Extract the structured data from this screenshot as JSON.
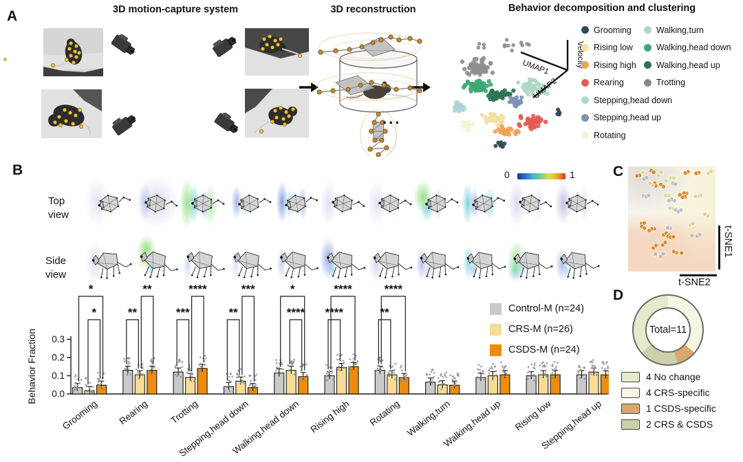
{
  "figure": {
    "panel_a": {
      "label": "A",
      "title_capture": "3D motion-capture system",
      "title_reconstruction": "3D reconstruction",
      "title_clustering": "Behavior decomposition and clustering",
      "ellipsis": "...",
      "umap_axes": {
        "vertical": "Velocity",
        "upper": "UMAP1",
        "lower": "UMAP2"
      },
      "behavior_legend_col1": [
        {
          "label": "Grooming",
          "color": "#2d4a57"
        },
        {
          "label": "Rising low",
          "color": "#f7e3a8"
        },
        {
          "label": "Rising high",
          "color": "#f0a355"
        },
        {
          "label": "Rearing",
          "color": "#e05c52"
        },
        {
          "label": "Stepping,head down",
          "color": "#aed5d6"
        },
        {
          "label": "Stepping,head up",
          "color": "#7d92b4"
        },
        {
          "label": "Rotating",
          "color": "#f4f4da"
        }
      ],
      "behavior_legend_col2": [
        {
          "label": "Walking,turn",
          "color": "#abd8c2"
        },
        {
          "label": "Walking,head down",
          "color": "#3fa876"
        },
        {
          "label": "Walking,head up",
          "color": "#2e7354"
        },
        {
          "label": "Trotting",
          "color": "#8a8a8a"
        }
      ]
    },
    "panel_b": {
      "label": "B",
      "top_view_line1": "Top",
      "top_view_line2": "view",
      "side_view_line1": "Side",
      "side_view_line2": "view",
      "colorbar_min": "0",
      "colorbar_max": "1"
    },
    "panel_c": {
      "label": "C",
      "axis_vertical": "t-SNE1",
      "axis_horizontal": "t-SNE2"
    },
    "panel_d": {
      "label": "D",
      "center_label": "Total=11",
      "legend": [
        {
          "label": "4 No change",
          "color": "#e6e9cb"
        },
        {
          "label": "4 CRS-specific",
          "color": "#f7f6e3"
        },
        {
          "label": "1 CSDS-specific",
          "color": "#d9a96c"
        },
        {
          "label": "2 CRS & CSDS",
          "color": "#ccd0ac"
        }
      ]
    }
  },
  "chart_data": [
    {
      "type": "bar",
      "ylabel": "Behavior Fraction",
      "ylim": [
        0,
        0.3
      ],
      "yticks": [
        0,
        0.1,
        0.2,
        0.3
      ],
      "ytick_labels": [
        "0.0",
        "0.1",
        "0.2",
        "0.3"
      ],
      "grid": false,
      "legend_position": "upper right",
      "categories": [
        "Grooming",
        "Rearing",
        "Trotting",
        "Stepping,head down",
        "Walking,head down",
        "Rising high",
        "Rotating",
        "Walking,turn",
        "Walking,head up",
        "Rising low",
        "Stepping,head up"
      ],
      "series": [
        {
          "name": "Control-M (n=24)",
          "color": "#c9c9c9",
          "values": [
            0.035,
            0.13,
            0.12,
            0.04,
            0.115,
            0.1,
            0.13,
            0.065,
            0.09,
            0.1,
            0.105
          ]
        },
        {
          "name": "CRS-M (n=26)",
          "color": "#f8dc96",
          "values": [
            0.018,
            0.105,
            0.09,
            0.07,
            0.13,
            0.145,
            0.105,
            0.05,
            0.1,
            0.105,
            0.12
          ]
        },
        {
          "name": "CSDS-M (n=24)",
          "color": "#ee8d0d",
          "values": [
            0.048,
            0.13,
            0.14,
            0.035,
            0.095,
            0.15,
            0.09,
            0.048,
            0.105,
            0.105,
            0.105
          ]
        }
      ],
      "significance": [
        {
          "category": "Grooming",
          "upper": {
            "bars": [
              0,
              2
            ],
            "stars": "*"
          },
          "lower": {
            "bars": [
              1,
              2
            ],
            "stars": "*"
          }
        },
        {
          "category": "Rearing",
          "upper": {
            "bars": [
              1,
              2
            ],
            "stars": "**"
          },
          "lower": {
            "bars": [
              0,
              1
            ],
            "stars": "**"
          }
        },
        {
          "category": "Trotting",
          "upper": {
            "bars": [
              1,
              2
            ],
            "stars": "****"
          },
          "lower": {
            "bars": [
              0,
              1
            ],
            "stars": "***"
          }
        },
        {
          "category": "Stepping,head down",
          "upper": {
            "bars": [
              1,
              2
            ],
            "stars": "***"
          },
          "lower": {
            "bars": [
              0,
              1
            ],
            "stars": "**"
          }
        },
        {
          "category": "Walking,head down",
          "upper": {
            "bars": [
              0,
              2
            ],
            "stars": "*"
          },
          "lower": {
            "bars": [
              1,
              2
            ],
            "stars": "****"
          }
        },
        {
          "category": "Rising high",
          "upper": {
            "bars": [
              0,
              2
            ],
            "stars": "****"
          },
          "lower": {
            "bars": [
              0,
              1
            ],
            "stars": "****"
          }
        },
        {
          "category": "Rotating",
          "upper": {
            "bars": [
              0,
              2
            ],
            "stars": "****"
          },
          "lower": {
            "bars": [
              0,
              1
            ],
            "stars": "**"
          }
        }
      ]
    },
    {
      "type": "pie",
      "center_label": "Total=11",
      "total": 11,
      "slices_clockwise_from_top": [
        {
          "label": "4 CRS-specific",
          "value": 4,
          "color": "#f7f6e3"
        },
        {
          "label": "1 CSDS-specific",
          "value": 1,
          "color": "#d9a96c"
        },
        {
          "label": "2 CRS & CSDS",
          "value": 2,
          "color": "#ccd0ac"
        },
        {
          "label": "4 No change",
          "value": 4,
          "color": "#e6e9cb"
        }
      ]
    },
    {
      "type": "scatter",
      "axes": [
        "UMAP1",
        "UMAP2",
        "Velocity"
      ],
      "cluster_labels": [
        "Grooming",
        "Rising low",
        "Rising high",
        "Rearing",
        "Stepping,head down",
        "Stepping,head up",
        "Rotating",
        "Walking,turn",
        "Walking,head down",
        "Walking,head up",
        "Trotting"
      ]
    },
    {
      "type": "scatter",
      "axes": [
        "t-SNE2",
        "t-SNE1"
      ]
    }
  ]
}
